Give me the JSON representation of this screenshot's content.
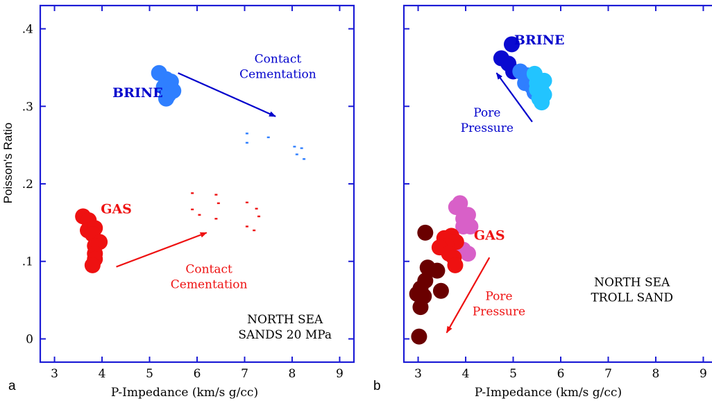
{
  "colors": {
    "frame": "#1c1cd6",
    "brine_blue": "#0000cc",
    "gas_red": "#ee1111",
    "light_blue": "#2f7fff",
    "navy": "#0a0ad0",
    "cyan": "#22c4ff",
    "dark_red": "#6a0000",
    "pink": "#d860c8"
  },
  "chart_data": [
    {
      "type": "scatter",
      "panel_letter": "a",
      "xlabel": "P-Impedance (km/s g/cc)",
      "ylabel": "Poisson's Ratio",
      "xlim": [
        2.7,
        9.3
      ],
      "ylim": [
        -0.03,
        0.43
      ],
      "x_ticks": [
        3,
        4,
        5,
        6,
        7,
        8,
        9
      ],
      "y_ticks": [
        0,
        0.1,
        0.2,
        0.3,
        0.4
      ],
      "y_tick_labels": [
        "0",
        ".1",
        ".2",
        ".3",
        ".4"
      ],
      "grid": false,
      "series": [
        {
          "key": "brine",
          "color": "#2f7fff",
          "marker": "large-circle",
          "points": [
            [
              5.2,
              0.343
            ],
            [
              5.35,
              0.335
            ],
            [
              5.45,
              0.332
            ],
            [
              5.3,
              0.325
            ],
            [
              5.5,
              0.32
            ],
            [
              5.4,
              0.315
            ],
            [
              5.35,
              0.31
            ]
          ]
        },
        {
          "key": "gas",
          "color": "#ee1111",
          "marker": "large-circle",
          "points": [
            [
              3.6,
              0.158
            ],
            [
              3.72,
              0.153
            ],
            [
              3.7,
              0.14
            ],
            [
              3.85,
              0.143
            ],
            [
              3.8,
              0.135
            ],
            [
              3.95,
              0.125
            ],
            [
              3.85,
              0.12
            ],
            [
              3.85,
              0.11
            ],
            [
              3.85,
              0.103
            ],
            [
              3.8,
              0.095
            ]
          ]
        },
        {
          "key": "brine_cemented",
          "color": "#2f7fff",
          "marker": "small-dash",
          "points": [
            [
              7.05,
              0.265
            ],
            [
              7.05,
              0.253
            ],
            [
              7.5,
              0.26
            ],
            [
              8.05,
              0.248
            ],
            [
              8.1,
              0.238
            ],
            [
              8.2,
              0.246
            ],
            [
              8.25,
              0.232
            ]
          ]
        },
        {
          "key": "gas_cemented",
          "color": "#ee1111",
          "marker": "small-dash",
          "points": [
            [
              5.9,
              0.188
            ],
            [
              5.9,
              0.167
            ],
            [
              6.4,
              0.186
            ],
            [
              6.45,
              0.175
            ],
            [
              6.05,
              0.16
            ],
            [
              6.4,
              0.155
            ],
            [
              7.05,
              0.176
            ],
            [
              7.05,
              0.145
            ],
            [
              7.25,
              0.168
            ],
            [
              7.3,
              0.158
            ],
            [
              7.2,
              0.14
            ]
          ]
        }
      ],
      "annotations": [
        {
          "key": "brine_label",
          "text": "BRINE",
          "style": "bold",
          "color": "#0000cc",
          "x": 4.75,
          "y": 0.312
        },
        {
          "key": "gas_label",
          "text": "GAS",
          "style": "bold",
          "color": "#ee1111",
          "x": 4.3,
          "y": 0.162
        },
        {
          "key": "brine_arrow_label",
          "lines": [
            "Contact",
            "Cementation"
          ],
          "color": "#0000cc",
          "x": 7.7,
          "y": 0.356
        },
        {
          "key": "gas_arrow_label",
          "lines": [
            "Contact",
            "Cementation"
          ],
          "color": "#ee1111",
          "x": 6.25,
          "y": 0.085
        },
        {
          "key": "location_label",
          "lines": [
            "NORTH SEA",
            "SANDS 20 MPa"
          ],
          "color": "#000000",
          "x": 7.85,
          "y": 0.02
        }
      ],
      "arrows": [
        {
          "key": "brine_arrow",
          "color": "#0000cc",
          "from": [
            5.6,
            0.343
          ],
          "to": [
            7.65,
            0.287
          ]
        },
        {
          "key": "gas_arrow",
          "color": "#ee1111",
          "from": [
            4.3,
            0.093
          ],
          "to": [
            6.2,
            0.137
          ]
        }
      ]
    },
    {
      "type": "scatter",
      "panel_letter": "b",
      "xlabel": "P-Impedance (km/s g/cc)",
      "ylabel": "",
      "xlim": [
        2.7,
        9.3
      ],
      "ylim": [
        -0.03,
        0.43
      ],
      "x_ticks": [
        3,
        4,
        5,
        6,
        7,
        8,
        9
      ],
      "y_ticks": [
        0,
        0.1,
        0.2,
        0.3,
        0.4
      ],
      "y_tick_labels": [
        "",
        "",
        "",
        "",
        ""
      ],
      "grid": false,
      "series": [
        {
          "key": "brine_navy",
          "color": "#0a0ad0",
          "marker": "large-circle",
          "points": [
            [
              4.97,
              0.38
            ],
            [
              4.75,
              0.362
            ],
            [
              4.9,
              0.355
            ],
            [
              5.0,
              0.345
            ]
          ]
        },
        {
          "key": "brine_mid",
          "color": "#2f7fff",
          "marker": "large-circle",
          "points": [
            [
              5.15,
              0.345
            ],
            [
              5.3,
              0.34
            ],
            [
              5.25,
              0.33
            ],
            [
              5.4,
              0.325
            ],
            [
              5.45,
              0.318
            ]
          ]
        },
        {
          "key": "brine_cyan",
          "color": "#22c4ff",
          "marker": "large-circle",
          "points": [
            [
              5.45,
              0.342
            ],
            [
              5.65,
              0.333
            ],
            [
              5.5,
              0.33
            ],
            [
              5.6,
              0.32
            ],
            [
              5.5,
              0.322
            ],
            [
              5.65,
              0.315
            ],
            [
              5.55,
              0.31
            ],
            [
              5.6,
              0.305
            ]
          ]
        },
        {
          "key": "gas_pink",
          "color": "#d860c8",
          "marker": "large-circle",
          "points": [
            [
              3.88,
              0.175
            ],
            [
              3.8,
              0.17
            ],
            [
              4.05,
              0.16
            ],
            [
              3.95,
              0.155
            ],
            [
              4.1,
              0.145
            ],
            [
              3.95,
              0.145
            ],
            [
              4.05,
              0.11
            ],
            [
              3.95,
              0.115
            ]
          ]
        },
        {
          "key": "gas_red",
          "color": "#ee1111",
          "marker": "large-circle",
          "points": [
            [
              3.7,
              0.133
            ],
            [
              3.55,
              0.13
            ],
            [
              3.8,
              0.125
            ],
            [
              3.6,
              0.12
            ],
            [
              3.45,
              0.118
            ],
            [
              3.65,
              0.11
            ],
            [
              3.75,
              0.105
            ],
            [
              3.78,
              0.095
            ]
          ]
        },
        {
          "key": "gas_dark",
          "color": "#6a0000",
          "marker": "large-circle",
          "points": [
            [
              3.15,
              0.137
            ],
            [
              3.2,
              0.092
            ],
            [
              3.4,
              0.088
            ],
            [
              3.15,
              0.075
            ],
            [
              3.05,
              0.065
            ],
            [
              2.98,
              0.058
            ],
            [
              3.12,
              0.055
            ],
            [
              3.48,
              0.062
            ],
            [
              3.05,
              0.041
            ],
            [
              3.02,
              0.003
            ]
          ]
        }
      ],
      "annotations": [
        {
          "key": "brine_label",
          "text": "BRINE",
          "style": "bold",
          "color": "#0000cc",
          "x": 5.55,
          "y": 0.38
        },
        {
          "key": "gas_label",
          "text": "GAS",
          "style": "bold",
          "color": "#ee1111",
          "x": 4.5,
          "y": 0.128
        },
        {
          "key": "brine_arrow_label",
          "lines": [
            "Pore",
            "Pressure"
          ],
          "color": "#0000cc",
          "x": 4.45,
          "y": 0.287
        },
        {
          "key": "gas_arrow_label",
          "lines": [
            "Pore",
            "Pressure"
          ],
          "color": "#ee1111",
          "x": 4.7,
          "y": 0.05
        },
        {
          "key": "location_label",
          "lines": [
            "NORTH SEA",
            "TROLL SAND"
          ],
          "color": "#000000",
          "x": 7.5,
          "y": 0.068
        }
      ],
      "arrows": [
        {
          "key": "brine_arrow",
          "color": "#0000cc",
          "from": [
            5.4,
            0.28
          ],
          "to": [
            4.65,
            0.343
          ]
        },
        {
          "key": "gas_arrow",
          "color": "#ee1111",
          "from": [
            4.5,
            0.105
          ],
          "to": [
            3.6,
            0.008
          ]
        }
      ]
    }
  ]
}
